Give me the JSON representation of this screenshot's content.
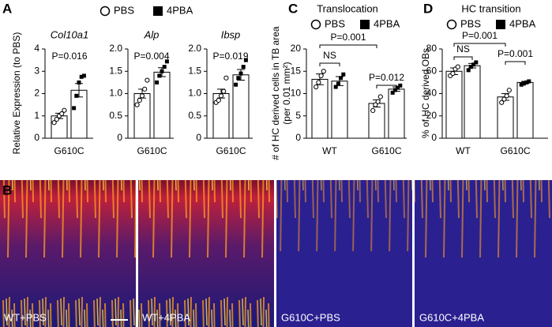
{
  "panel_labels": [
    "A",
    "B",
    "C",
    "D"
  ],
  "images": [
    {
      "label": "WT+PBS"
    },
    {
      "label": "WT+4PBA"
    },
    {
      "label": "G610C+PBS"
    },
    {
      "label": "G610C+4PBA"
    }
  ],
  "chart_data": [
    {
      "type": "bar",
      "title": "Col10a1",
      "ylabel": "Relative Expression (to PBS)",
      "categories": [
        "G610C"
      ],
      "series": [
        {
          "name": "PBS",
          "color": "#000000",
          "marker": "circle-open",
          "values": [
            1.0
          ],
          "errors": [
            0.12
          ],
          "points": [
            [
              0.7,
              0.85,
              1.0,
              1.1,
              1.25
            ]
          ]
        },
        {
          "name": "4PBA",
          "color": "#000000",
          "marker": "square",
          "values": [
            2.15
          ],
          "errors": [
            0.3
          ],
          "points": [
            [
              1.35,
              1.9,
              2.5,
              2.75,
              2.8
            ]
          ]
        }
      ],
      "ylim": [
        0,
        4
      ],
      "yticks": [
        0,
        1,
        2,
        3,
        4
      ],
      "annotations": [
        "P=0.016"
      ]
    },
    {
      "type": "bar",
      "title": "Alp",
      "categories": [
        "G610C"
      ],
      "series": [
        {
          "color": "#000000",
          "marker": "circle-open",
          "values": [
            1.0
          ],
          "errors": [
            0.1
          ],
          "points": [
            [
              0.75,
              0.85,
              0.95,
              1.1,
              1.3
            ]
          ]
        },
        {
          "color": "#000000",
          "marker": "square",
          "values": [
            1.48
          ],
          "errors": [
            0.1
          ],
          "points": [
            [
              1.25,
              1.4,
              1.5,
              1.6,
              1.72
            ]
          ]
        }
      ],
      "ylim": [
        0,
        2
      ],
      "yticks": [
        0,
        0.5,
        {
          "value": 1,
          "label": "1.0"
        },
        1.5,
        {
          "value": 2,
          "label": "2.0"
        }
      ],
      "annotations": [
        "P=0.004"
      ]
    },
    {
      "type": "bar",
      "title": "Ibsp",
      "categories": [
        "G610C"
      ],
      "series": [
        {
          "color": "#000000",
          "marker": "circle-open",
          "values": [
            1.0
          ],
          "errors": [
            0.1
          ],
          "points": [
            [
              0.8,
              0.85,
              0.95,
              1.05,
              1.35
            ]
          ]
        },
        {
          "color": "#000000",
          "marker": "square",
          "values": [
            1.42
          ],
          "errors": [
            0.12
          ],
          "points": [
            [
              1.2,
              1.35,
              1.45,
              1.6,
              1.75
            ]
          ]
        }
      ],
      "ylim": [
        0,
        2
      ],
      "yticks": [
        0,
        0.5,
        {
          "value": 1,
          "label": "1.0"
        },
        1.5,
        {
          "value": 2,
          "label": "2.0"
        }
      ],
      "annotations": [
        "P=0.019"
      ]
    },
    {
      "type": "bar",
      "title": "Translocation",
      "ylabel": [
        "# of HC derived cells in TB area",
        "(per 0.01 mm²)"
      ],
      "categories": [
        "WT",
        "G610C"
      ],
      "series": [
        {
          "name": "PBS",
          "color": "#000000",
          "marker": "circle-open",
          "values": [
            13.2,
            7.8
          ],
          "errors": [
            1.2,
            0.8
          ],
          "points": [
            [
              11.5,
              12.5,
              14,
              15
            ],
            [
              6.2,
              7.5,
              8.2,
              9.3
            ]
          ]
        },
        {
          "name": "4PBA",
          "color": "#000000",
          "marker": "square",
          "values": [
            12.8,
            11
          ],
          "errors": [
            1,
            0.5
          ],
          "points": [
            [
              11.5,
              12.2,
              13.5,
              14.3
            ],
            [
              10.2,
              10.8,
              11.3,
              11.8
            ]
          ]
        }
      ],
      "ylim": [
        0,
        20
      ],
      "yticks": [
        0,
        5,
        10,
        15,
        20
      ],
      "annotations": [
        "NS",
        "P=0.001",
        "P=0.012"
      ]
    },
    {
      "type": "bar",
      "title": "HC transition",
      "ylabel": "% of HC derived OBs",
      "categories": [
        "WT",
        "G610C"
      ],
      "series": [
        {
          "name": "PBS",
          "color": "#000000",
          "marker": "circle-open",
          "values": [
            60,
            37
          ],
          "errors": [
            3,
            3
          ],
          "points": [
            [
              56,
              58,
              62,
              64
            ],
            [
              32,
              35,
              38,
              43
            ]
          ]
        },
        {
          "name": "4PBA",
          "color": "#000000",
          "marker": "square",
          "values": [
            65,
            50
          ],
          "errors": [
            2,
            1
          ],
          "points": [
            [
              61,
              64,
              66,
              68
            ],
            [
              48,
              49,
              50,
              51
            ]
          ]
        }
      ],
      "ylim": [
        0,
        80
      ],
      "yticks": [
        0,
        20,
        40,
        60,
        80
      ],
      "annotations": [
        "NS",
        "P=0.001",
        "P=0.001"
      ]
    }
  ]
}
